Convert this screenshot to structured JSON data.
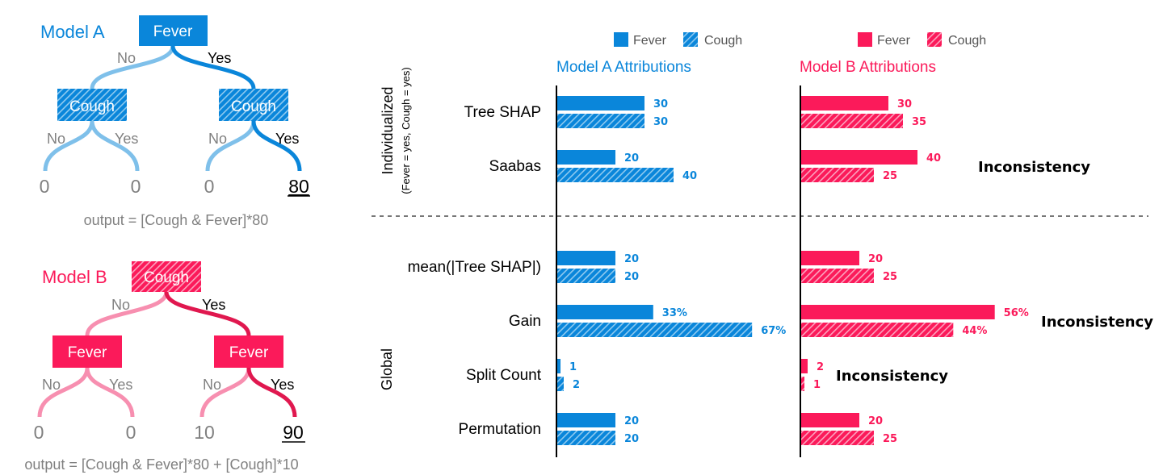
{
  "colors": {
    "model_a": "#0a86da",
    "model_a_light": "#7fc0ea",
    "model_b": "#fb1a5a",
    "model_b_light": "#f78fb0",
    "text_gray": "#808080"
  },
  "model_a": {
    "title": "Model A",
    "root": "Fever",
    "left": "Cough",
    "right": "Cough",
    "branch_no": "No",
    "branch_yes": "Yes",
    "leaves": [
      "0",
      "0",
      "0",
      "80"
    ],
    "formula": "output = [Cough & Fever]*80"
  },
  "model_b": {
    "title": "Model B",
    "root": "Cough",
    "left": "Fever",
    "right": "Fever",
    "branch_no": "No",
    "branch_yes": "Yes",
    "leaves": [
      "0",
      "0",
      "10",
      "90"
    ],
    "formula": "output = [Cough & Fever]*80 + [Cough]*10"
  },
  "chart_data": {
    "type": "bar",
    "orientation": "horizontal",
    "panels": [
      "Model A Attributions",
      "Model B Attributions"
    ],
    "legend": [
      "Fever",
      "Cough"
    ],
    "sections": [
      {
        "label": "Individualized",
        "sublabel": "(Fever = yes, Cough = yes)"
      },
      {
        "label": "Global"
      }
    ],
    "methods": [
      {
        "name": "Tree SHAP",
        "a": {
          "fever": 30,
          "cough": 30,
          "fever_label": "30",
          "cough_label": "30"
        },
        "b": {
          "fever": 30,
          "cough": 35,
          "fever_label": "30",
          "cough_label": "35"
        },
        "note": ""
      },
      {
        "name": "Saabas",
        "a": {
          "fever": 20,
          "cough": 40,
          "fever_label": "20",
          "cough_label": "40"
        },
        "b": {
          "fever": 40,
          "cough": 25,
          "fever_label": "40",
          "cough_label": "25"
        },
        "note": "Inconsistency"
      },
      {
        "name": "mean(|Tree SHAP|)",
        "a": {
          "fever": 20,
          "cough": 20,
          "fever_label": "20",
          "cough_label": "20"
        },
        "b": {
          "fever": 20,
          "cough": 25,
          "fever_label": "20",
          "cough_label": "25"
        },
        "note": ""
      },
      {
        "name": "Gain",
        "a": {
          "fever": 33,
          "cough": 67,
          "fever_label": "33%",
          "cough_label": "67%"
        },
        "b": {
          "fever": 56,
          "cough": 44,
          "fever_label": "56%",
          "cough_label": "44%"
        },
        "note": "Inconsistency"
      },
      {
        "name": "Split Count",
        "a": {
          "fever": 1,
          "cough": 2,
          "fever_label": "1",
          "cough_label": "2"
        },
        "b": {
          "fever": 2,
          "cough": 1,
          "fever_label": "2",
          "cough_label": "1"
        },
        "note": "Inconsistency"
      },
      {
        "name": "Permutation",
        "a": {
          "fever": 20,
          "cough": 20,
          "fever_label": "20",
          "cough_label": "20"
        },
        "b": {
          "fever": 20,
          "cough": 25,
          "fever_label": "20",
          "cough_label": "25"
        },
        "note": ""
      }
    ]
  }
}
